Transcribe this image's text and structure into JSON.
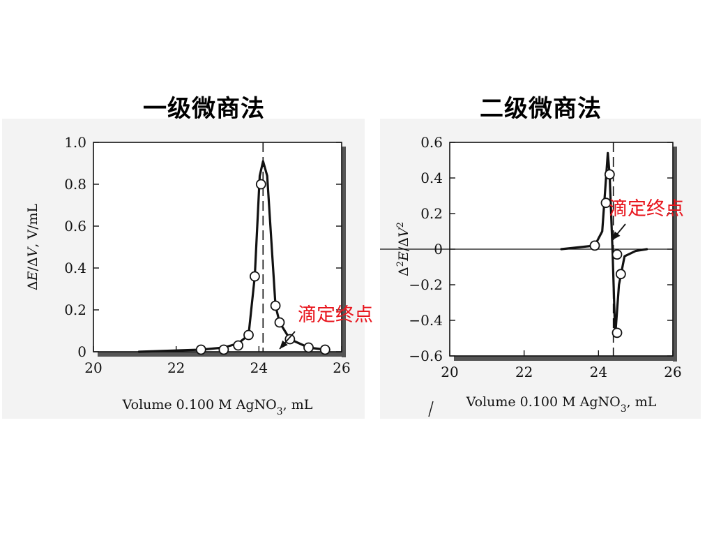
{
  "headings": {
    "left": "一级微商法",
    "right": "二级微商法"
  },
  "colors": {
    "annotation": "#e8141c",
    "ink": "#111111",
    "panel_background": "#f3f3f3"
  },
  "chart_data": [
    {
      "type": "line",
      "title": "一级微商法",
      "xlabel": "Volume 0.100 M AgNO3, mL",
      "ylabel": "ΔE/ΔV, V/mL",
      "xlim": [
        20,
        26
      ],
      "ylim": [
        0,
        1.0
      ],
      "x_ticks": [
        20,
        22,
        24,
        26
      ],
      "x_tick_labels": [
        "20",
        "22",
        "24",
        "26"
      ],
      "y_ticks": [
        0,
        0.2,
        0.4,
        0.6,
        0.8,
        1.0
      ],
      "y_tick_labels": [
        "0",
        "0.2",
        "0.4",
        "0.6",
        "0.8",
        "1.0"
      ],
      "endpoint_x": 24.1,
      "annotation": "滴定终点",
      "series": [
        {
          "marker": "circle",
          "x": [
            22.6,
            23.15,
            23.5,
            23.75,
            23.9,
            24.05,
            24.4,
            24.5,
            24.75,
            25.2,
            25.6
          ],
          "y": [
            0.01,
            0.01,
            0.03,
            0.08,
            0.36,
            0.8,
            0.22,
            0.14,
            0.06,
            0.02,
            0.01
          ]
        }
      ],
      "curve": {
        "x": [
          21.1,
          22.6,
          23.15,
          23.5,
          23.75,
          23.9,
          24.02,
          24.1,
          24.2,
          24.4,
          24.5,
          24.75,
          25.2,
          25.6,
          25.7
        ],
        "y": [
          0.0,
          0.01,
          0.02,
          0.04,
          0.08,
          0.36,
          0.84,
          0.91,
          0.84,
          0.22,
          0.14,
          0.06,
          0.02,
          0.01,
          0.01
        ]
      }
    },
    {
      "type": "line",
      "title": "二级微商法",
      "xlabel": "Volume 0.100 M AgNO3, mL",
      "ylabel": "Δ2E/ΔV2",
      "xlim": [
        20,
        26
      ],
      "ylim": [
        -0.6,
        0.6
      ],
      "x_ticks": [
        20,
        22,
        24,
        26
      ],
      "x_tick_labels": [
        "20",
        "22",
        "24",
        "26"
      ],
      "y_ticks": [
        -0.6,
        -0.4,
        -0.2,
        0,
        0.2,
        0.4,
        0.6
      ],
      "y_tick_labels": [
        "−0.6",
        "−0.4",
        "−0.2",
        "0",
        "0.2",
        "0.4",
        "0.6"
      ],
      "endpoint_x": 24.4,
      "annotation": "滴定终点",
      "series": [
        {
          "marker": "circle",
          "x": [
            23.9,
            24.2,
            24.3,
            24.5,
            24.6,
            24.5
          ],
          "y": [
            0.02,
            0.26,
            0.42,
            -0.03,
            -0.14,
            -0.47
          ]
        }
      ],
      "curve": {
        "x": [
          23.0,
          23.9,
          24.1,
          24.25,
          24.3,
          24.38,
          24.45,
          24.55,
          24.7,
          25.0,
          25.3
        ],
        "y": [
          0.0,
          0.02,
          0.1,
          0.54,
          0.42,
          -0.02,
          -0.49,
          -0.2,
          -0.04,
          -0.01,
          0.0
        ]
      }
    }
  ]
}
